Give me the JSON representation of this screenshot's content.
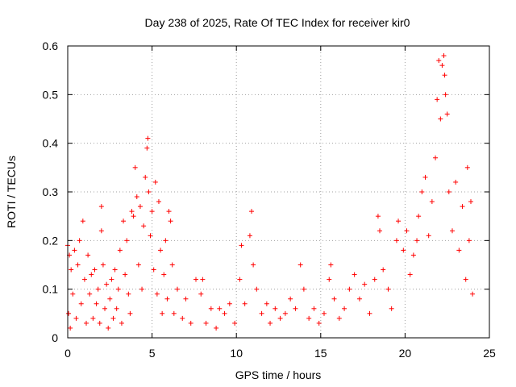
{
  "chart_data": {
    "type": "scatter",
    "title": "Day 238 of 2025, Rate Of TEC Index for receiver kir0",
    "xlabel": "GPS time / hours",
    "ylabel": "ROTI / TECUs",
    "xlim": [
      0,
      25
    ],
    "ylim": [
      0,
      0.6
    ],
    "xticks": [
      0,
      5,
      10,
      15,
      20,
      25
    ],
    "xtick_labels": [
      "0",
      "5",
      "10",
      "15",
      "20",
      "25"
    ],
    "yticks": [
      0,
      0.1,
      0.2,
      0.3,
      0.4,
      0.5,
      0.6
    ],
    "ytick_labels": [
      "0",
      "0.1",
      "0.2",
      "0.3",
      "0.4",
      "0.5",
      "0.6"
    ],
    "grid": true,
    "marker": "+",
    "series": [
      {
        "color": "#ff0000",
        "points": [
          [
            0.0,
            0.19
          ],
          [
            0.05,
            0.05
          ],
          [
            0.1,
            0.17
          ],
          [
            0.15,
            0.02
          ],
          [
            0.2,
            0.14
          ],
          [
            0.3,
            0.09
          ],
          [
            0.4,
            0.18
          ],
          [
            0.5,
            0.04
          ],
          [
            0.6,
            0.15
          ],
          [
            0.7,
            0.2
          ],
          [
            0.8,
            0.07
          ],
          [
            0.9,
            0.24
          ],
          [
            1.0,
            0.12
          ],
          [
            1.1,
            0.03
          ],
          [
            1.2,
            0.17
          ],
          [
            1.3,
            0.09
          ],
          [
            1.4,
            0.13
          ],
          [
            1.5,
            0.04
          ],
          [
            1.6,
            0.14
          ],
          [
            1.7,
            0.07
          ],
          [
            1.8,
            0.1
          ],
          [
            1.9,
            0.03
          ],
          [
            2.0,
            0.27
          ],
          [
            2.0,
            0.22
          ],
          [
            2.1,
            0.15
          ],
          [
            2.2,
            0.06
          ],
          [
            2.3,
            0.11
          ],
          [
            2.4,
            0.02
          ],
          [
            2.5,
            0.08
          ],
          [
            2.6,
            0.12
          ],
          [
            2.7,
            0.04
          ],
          [
            2.8,
            0.14
          ],
          [
            2.9,
            0.06
          ],
          [
            3.0,
            0.1
          ],
          [
            3.1,
            0.18
          ],
          [
            3.2,
            0.03
          ],
          [
            3.3,
            0.24
          ],
          [
            3.4,
            0.13
          ],
          [
            3.5,
            0.2
          ],
          [
            3.6,
            0.09
          ],
          [
            3.7,
            0.05
          ],
          [
            3.8,
            0.26
          ],
          [
            3.9,
            0.25
          ],
          [
            4.0,
            0.35
          ],
          [
            4.1,
            0.29
          ],
          [
            4.2,
            0.15
          ],
          [
            4.3,
            0.27
          ],
          [
            4.4,
            0.1
          ],
          [
            4.5,
            0.23
          ],
          [
            4.6,
            0.33
          ],
          [
            4.7,
            0.39
          ],
          [
            4.75,
            0.41
          ],
          [
            4.8,
            0.3
          ],
          [
            4.9,
            0.21
          ],
          [
            5.0,
            0.26
          ],
          [
            5.1,
            0.14
          ],
          [
            5.2,
            0.32
          ],
          [
            5.3,
            0.09
          ],
          [
            5.4,
            0.28
          ],
          [
            5.5,
            0.18
          ],
          [
            5.6,
            0.05
          ],
          [
            5.7,
            0.13
          ],
          [
            5.8,
            0.2
          ],
          [
            5.9,
            0.08
          ],
          [
            6.0,
            0.26
          ],
          [
            6.1,
            0.24
          ],
          [
            6.2,
            0.15
          ],
          [
            6.3,
            0.05
          ],
          [
            6.5,
            0.1
          ],
          [
            6.8,
            0.04
          ],
          [
            7.0,
            0.08
          ],
          [
            7.3,
            0.03
          ],
          [
            7.6,
            0.12
          ],
          [
            7.9,
            0.09
          ],
          [
            8.0,
            0.12
          ],
          [
            8.2,
            0.03
          ],
          [
            8.5,
            0.06
          ],
          [
            8.8,
            0.02
          ],
          [
            9.0,
            0.06
          ],
          [
            9.3,
            0.05
          ],
          [
            9.6,
            0.07
          ],
          [
            9.9,
            0.03
          ],
          [
            10.2,
            0.12
          ],
          [
            10.3,
            0.19
          ],
          [
            10.5,
            0.07
          ],
          [
            10.8,
            0.21
          ],
          [
            10.9,
            0.26
          ],
          [
            11.0,
            0.15
          ],
          [
            11.2,
            0.1
          ],
          [
            11.5,
            0.05
          ],
          [
            11.8,
            0.07
          ],
          [
            12.0,
            0.03
          ],
          [
            12.3,
            0.06
          ],
          [
            12.6,
            0.04
          ],
          [
            12.9,
            0.05
          ],
          [
            13.2,
            0.08
          ],
          [
            13.5,
            0.06
          ],
          [
            13.8,
            0.15
          ],
          [
            14.0,
            0.1
          ],
          [
            14.3,
            0.04
          ],
          [
            14.6,
            0.06
          ],
          [
            14.9,
            0.03
          ],
          [
            15.2,
            0.05
          ],
          [
            15.5,
            0.12
          ],
          [
            15.6,
            0.15
          ],
          [
            15.8,
            0.08
          ],
          [
            16.1,
            0.04
          ],
          [
            16.4,
            0.06
          ],
          [
            16.7,
            0.1
          ],
          [
            17.0,
            0.13
          ],
          [
            17.3,
            0.08
          ],
          [
            17.6,
            0.11
          ],
          [
            17.9,
            0.05
          ],
          [
            18.2,
            0.12
          ],
          [
            18.4,
            0.25
          ],
          [
            18.5,
            0.22
          ],
          [
            18.7,
            0.14
          ],
          [
            19.0,
            0.1
          ],
          [
            19.2,
            0.06
          ],
          [
            19.5,
            0.2
          ],
          [
            19.6,
            0.24
          ],
          [
            19.9,
            0.18
          ],
          [
            20.1,
            0.22
          ],
          [
            20.3,
            0.13
          ],
          [
            20.5,
            0.17
          ],
          [
            20.7,
            0.2
          ],
          [
            20.8,
            0.25
          ],
          [
            21.0,
            0.3
          ],
          [
            21.2,
            0.33
          ],
          [
            21.4,
            0.21
          ],
          [
            21.6,
            0.28
          ],
          [
            21.8,
            0.37
          ],
          [
            21.9,
            0.49
          ],
          [
            22.0,
            0.57
          ],
          [
            22.1,
            0.45
          ],
          [
            22.2,
            0.56
          ],
          [
            22.3,
            0.58
          ],
          [
            22.35,
            0.54
          ],
          [
            22.4,
            0.5
          ],
          [
            22.5,
            0.46
          ],
          [
            22.6,
            0.3
          ],
          [
            22.8,
            0.22
          ],
          [
            23.0,
            0.32
          ],
          [
            23.2,
            0.18
          ],
          [
            23.4,
            0.27
          ],
          [
            23.6,
            0.12
          ],
          [
            23.7,
            0.35
          ],
          [
            23.8,
            0.2
          ],
          [
            23.9,
            0.28
          ],
          [
            24.0,
            0.09
          ]
        ]
      }
    ]
  }
}
